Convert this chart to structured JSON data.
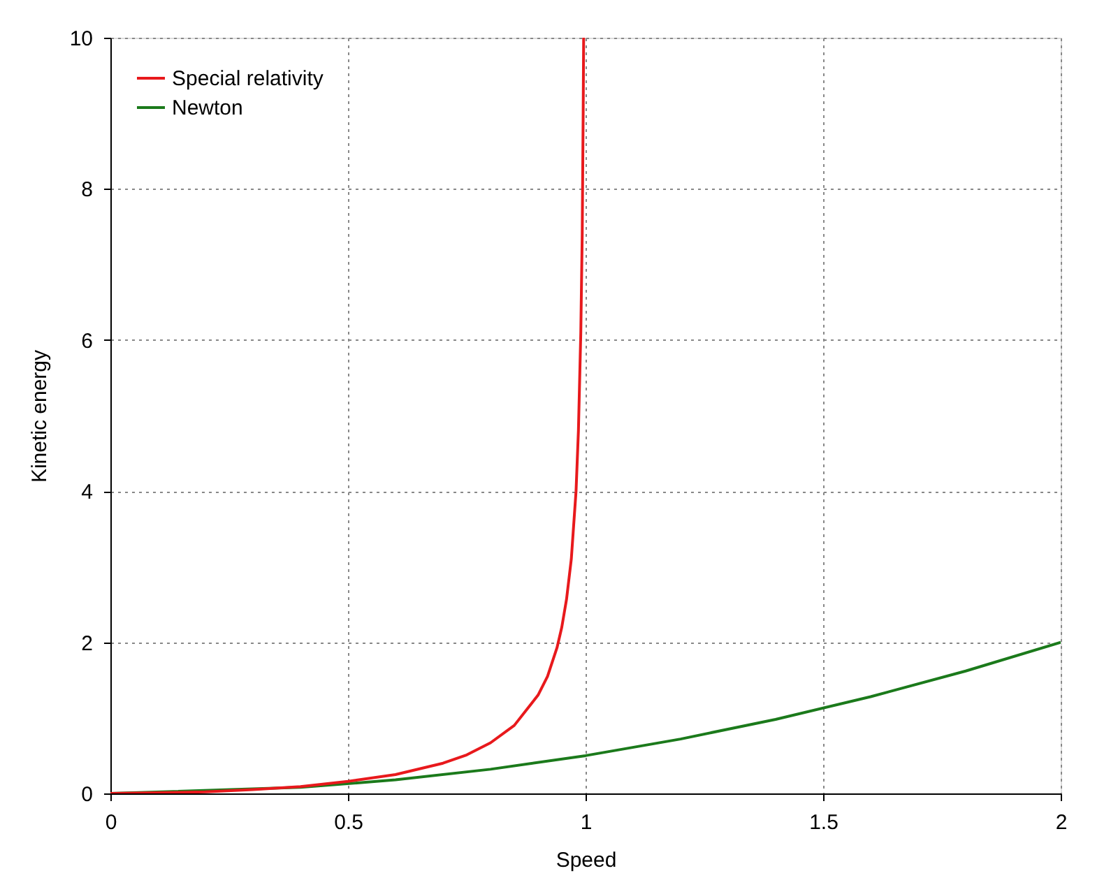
{
  "chart_data": {
    "type": "line",
    "xlabel": "Speed",
    "ylabel": "Kinetic energy",
    "xlim": [
      0,
      2
    ],
    "xticks": [
      0,
      0.5,
      1,
      1.5,
      2
    ],
    "ylim": [
      0,
      10
    ],
    "yticks": [
      0,
      2,
      4,
      6,
      8,
      10
    ],
    "grid": true,
    "legend": "top left",
    "line_style": "solid",
    "marker": "none",
    "series": [
      {
        "name": "Special relativity",
        "color": "#e8191c",
        "x": [
          0,
          0.2,
          0.3,
          0.4,
          0.5,
          0.6,
          0.7,
          0.75,
          0.8,
          0.85,
          0.9,
          0.92,
          0.94,
          0.95,
          0.96,
          0.97,
          0.98,
          0.985,
          0.99,
          0.993,
          0.995,
          0.996
        ],
        "values": [
          0,
          0.02,
          0.05,
          0.09,
          0.16,
          0.25,
          0.4,
          0.51,
          0.67,
          0.9,
          1.3,
          1.55,
          1.93,
          2.2,
          2.57,
          3.1,
          4.0,
          4.8,
          6.1,
          7.4,
          9.0,
          10.0
        ]
      },
      {
        "name": "Newton",
        "color": "#1b7a1b",
        "x": [
          0,
          0.4,
          0.6,
          0.8,
          1.0,
          1.2,
          1.4,
          1.6,
          1.8,
          2.0
        ],
        "values": [
          0,
          0.08,
          0.18,
          0.32,
          0.5,
          0.72,
          0.98,
          1.28,
          1.62,
          2.0
        ]
      }
    ]
  }
}
